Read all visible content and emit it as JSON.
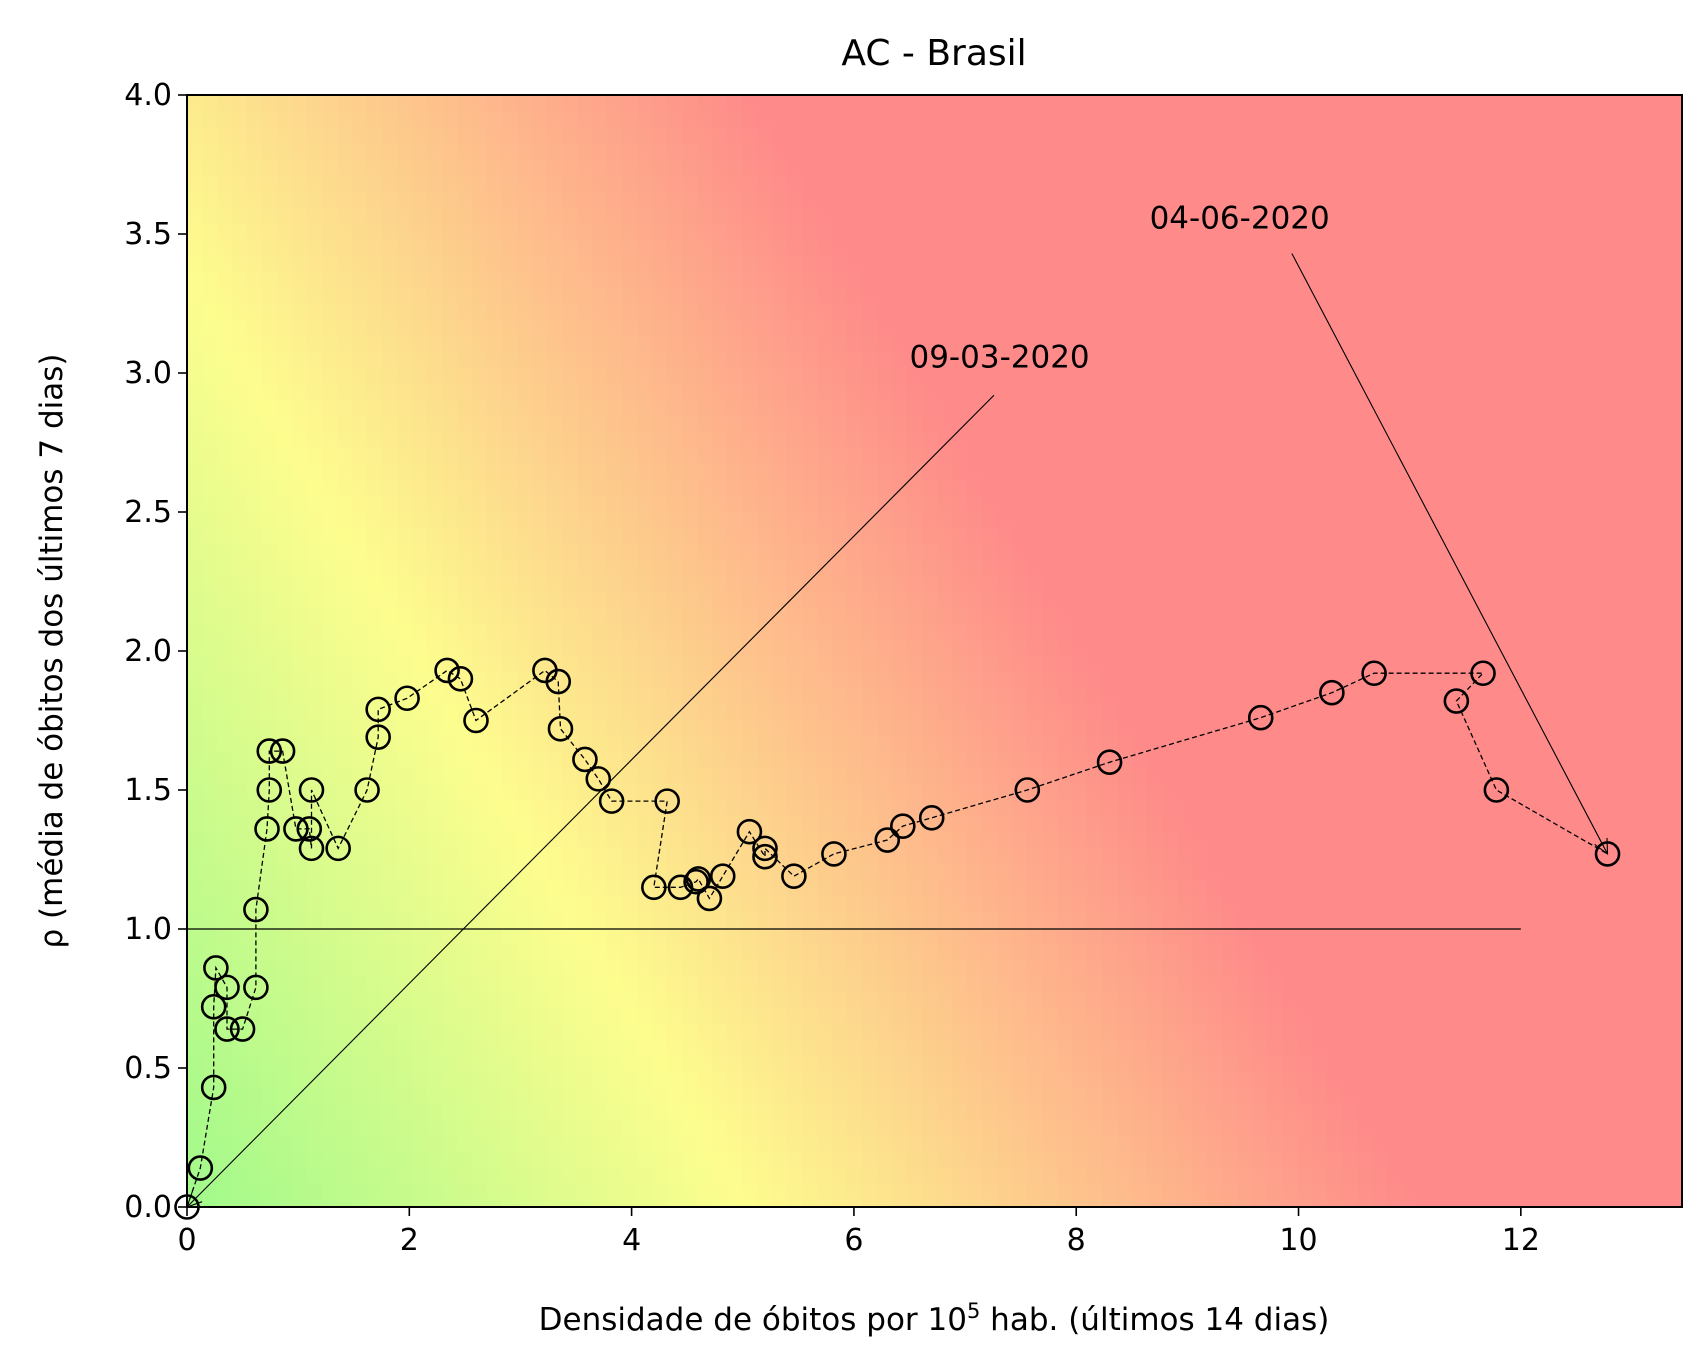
{
  "chart_data": {
    "type": "scatter",
    "title": "AC - Brasil",
    "xlabel": {
      "prefix": "Densidade de óbitos por 10",
      "superscript": "5",
      "suffix": " hab. (últimos 14 dias)"
    },
    "ylabel": "ρ (média de óbitos dos últimos 7 dias)",
    "xlim": [
      0,
      13.45
    ],
    "ylim": [
      0,
      4.0
    ],
    "xticks": [
      0,
      2,
      4,
      6,
      8,
      10,
      12
    ],
    "xtick_labels": [
      "0",
      "2",
      "4",
      "6",
      "8",
      "10",
      "12"
    ],
    "yticks": [
      0,
      0.5,
      1.0,
      1.5,
      2.0,
      2.5,
      3.0,
      3.5,
      4.0
    ],
    "ytick_labels": [
      "0.0",
      "0.5",
      "1.0",
      "1.5",
      "2.0",
      "2.5",
      "3.0",
      "3.5",
      "4.0"
    ],
    "grid": false,
    "background": {
      "type": "risk-gradient",
      "colors": [
        "#8ff98a",
        "#fdfd8e",
        "#fe8b8a"
      ]
    },
    "marker_color": "#000000",
    "reference_line": {
      "y": 1.0,
      "x": [
        0,
        12
      ]
    },
    "series": [
      {
        "x": [
          0.0,
          0.12,
          0.24,
          0.24,
          0.26,
          0.36,
          0.36,
          0.5,
          0.62,
          0.62,
          0.72,
          0.74,
          0.74,
          0.86,
          0.98,
          1.1,
          1.12,
          1.12,
          1.36,
          1.62,
          1.72,
          1.72,
          1.98,
          2.34,
          2.46,
          2.6,
          3.22,
          3.34,
          3.36,
          3.58,
          3.7,
          3.82,
          4.32,
          4.2,
          4.44,
          4.58,
          4.6,
          4.7,
          4.82,
          5.06,
          5.2,
          5.2,
          5.46,
          5.82,
          6.3,
          6.44,
          6.7,
          7.56,
          8.3,
          9.66,
          10.3,
          10.68,
          11.66,
          11.42,
          11.78,
          12.78
        ],
        "y": [
          0.0,
          0.14,
          0.43,
          0.72,
          0.86,
          0.79,
          0.64,
          0.64,
          0.79,
          1.07,
          1.36,
          1.5,
          1.64,
          1.64,
          1.36,
          1.36,
          1.29,
          1.5,
          1.29,
          1.5,
          1.69,
          1.79,
          1.83,
          1.93,
          1.9,
          1.75,
          1.93,
          1.89,
          1.72,
          1.61,
          1.54,
          1.46,
          1.46,
          1.15,
          1.15,
          1.17,
          1.18,
          1.11,
          1.19,
          1.35,
          1.26,
          1.29,
          1.19,
          1.27,
          1.32,
          1.37,
          1.4,
          1.5,
          1.6,
          1.76,
          1.85,
          1.92,
          1.92,
          1.82,
          1.5,
          1.27
        ]
      }
    ],
    "annotations": [
      {
        "text": "09-03-2020",
        "x": 6.5,
        "y": 3.02,
        "arrow_from": [
          7.26,
          2.92
        ],
        "arrow_to": [
          0.0,
          0.0
        ]
      },
      {
        "text": "04-06-2020",
        "x": 8.66,
        "y": 3.52,
        "arrow_from": [
          9.94,
          3.43
        ],
        "arrow_to": [
          12.78,
          1.27
        ]
      }
    ]
  }
}
